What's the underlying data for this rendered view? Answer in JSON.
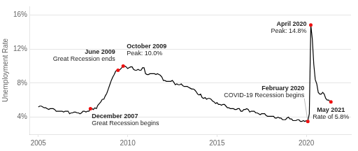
{
  "chart_data": {
    "type": "line",
    "ylabel": "Unemployment Rate",
    "xlim": [
      2004.5,
      2022.5
    ],
    "ylim": [
      2,
      17
    ],
    "xticks": [
      2005,
      2010,
      2015,
      2020
    ],
    "yticks": [
      {
        "value": 4,
        "label": "4%"
      },
      {
        "value": 8,
        "label": "8%"
      },
      {
        "value": 12,
        "label": "12%"
      },
      {
        "value": 16,
        "label": "16%"
      }
    ],
    "grid": true,
    "color": "#000000",
    "x": [
      2005.0,
      2005.083,
      2005.167,
      2005.25,
      2005.333,
      2005.417,
      2005.5,
      2005.583,
      2005.667,
      2005.75,
      2005.833,
      2005.917,
      2006.0,
      2006.083,
      2006.167,
      2006.25,
      2006.333,
      2006.417,
      2006.5,
      2006.583,
      2006.667,
      2006.75,
      2006.833,
      2006.917,
      2007.0,
      2007.083,
      2007.167,
      2007.25,
      2007.333,
      2007.417,
      2007.5,
      2007.583,
      2007.667,
      2007.75,
      2007.833,
      2007.917,
      2008.0,
      2008.083,
      2008.167,
      2008.25,
      2008.333,
      2008.417,
      2008.5,
      2008.583,
      2008.667,
      2008.75,
      2008.833,
      2008.917,
      2009.0,
      2009.083,
      2009.167,
      2009.25,
      2009.333,
      2009.417,
      2009.5,
      2009.583,
      2009.667,
      2009.75,
      2009.833,
      2009.917,
      2010.0,
      2010.083,
      2010.167,
      2010.25,
      2010.333,
      2010.417,
      2010.5,
      2010.583,
      2010.667,
      2010.75,
      2010.833,
      2010.917,
      2011.0,
      2011.083,
      2011.167,
      2011.25,
      2011.333,
      2011.417,
      2011.5,
      2011.583,
      2011.667,
      2011.75,
      2011.833,
      2011.917,
      2012.0,
      2012.083,
      2012.167,
      2012.25,
      2012.333,
      2012.417,
      2012.5,
      2012.583,
      2012.667,
      2012.75,
      2012.833,
      2012.917,
      2013.0,
      2013.083,
      2013.167,
      2013.25,
      2013.333,
      2013.417,
      2013.5,
      2013.583,
      2013.667,
      2013.75,
      2013.833,
      2013.917,
      2014.0,
      2014.083,
      2014.167,
      2014.25,
      2014.333,
      2014.417,
      2014.5,
      2014.583,
      2014.667,
      2014.75,
      2014.833,
      2014.917,
      2015.0,
      2015.083,
      2015.167,
      2015.25,
      2015.333,
      2015.417,
      2015.5,
      2015.583,
      2015.667,
      2015.75,
      2015.833,
      2015.917,
      2016.0,
      2016.083,
      2016.167,
      2016.25,
      2016.333,
      2016.417,
      2016.5,
      2016.583,
      2016.667,
      2016.75,
      2016.833,
      2016.917,
      2017.0,
      2017.083,
      2017.167,
      2017.25,
      2017.333,
      2017.417,
      2017.5,
      2017.583,
      2017.667,
      2017.75,
      2017.833,
      2017.917,
      2018.0,
      2018.083,
      2018.167,
      2018.25,
      2018.333,
      2018.417,
      2018.5,
      2018.583,
      2018.667,
      2018.75,
      2018.833,
      2018.917,
      2019.0,
      2019.083,
      2019.167,
      2019.25,
      2019.333,
      2019.417,
      2019.5,
      2019.583,
      2019.667,
      2019.75,
      2019.833,
      2019.917,
      2020.0,
      2020.083,
      2020.167,
      2020.25,
      2020.333,
      2020.417,
      2020.5,
      2020.583,
      2020.667,
      2020.75,
      2020.833,
      2020.917,
      2021.0,
      2021.083,
      2021.167,
      2021.25,
      2021.333,
      2021.417
    ],
    "values": [
      5.2,
      5.3,
      5.3,
      5.2,
      5.1,
      5.1,
      5.0,
      4.9,
      5.0,
      5.0,
      5.0,
      4.9,
      4.7,
      4.7,
      4.7,
      4.7,
      4.7,
      4.6,
      4.7,
      4.7,
      4.7,
      4.4,
      4.5,
      4.5,
      4.6,
      4.6,
      4.5,
      4.5,
      4.4,
      4.5,
      4.7,
      4.7,
      4.6,
      4.7,
      4.7,
      5.0,
      5.0,
      4.9,
      5.1,
      5.0,
      5.4,
      5.6,
      5.8,
      6.1,
      6.1,
      6.5,
      6.8,
      7.3,
      7.8,
      8.3,
      8.7,
      9.0,
      9.4,
      9.5,
      9.5,
      9.6,
      9.8,
      10.0,
      10.0,
      9.9,
      9.7,
      9.8,
      9.9,
      9.9,
      9.6,
      9.5,
      9.5,
      9.6,
      9.5,
      9.5,
      9.8,
      9.8,
      9.1,
      9.0,
      9.0,
      9.1,
      9.1,
      9.1,
      9.1,
      9.0,
      9.1,
      9.0,
      8.9,
      8.7,
      8.3,
      8.3,
      8.2,
      8.2,
      8.2,
      8.2,
      8.3,
      8.1,
      7.8,
      7.9,
      7.8,
      7.8,
      7.9,
      7.7,
      7.6,
      7.6,
      7.6,
      7.5,
      7.4,
      7.3,
      7.3,
      7.2,
      7.0,
      6.7,
      6.6,
      6.7,
      6.3,
      6.2,
      6.3,
      6.1,
      6.2,
      6.2,
      6.1,
      5.9,
      5.8,
      5.6,
      5.7,
      5.5,
      5.5,
      5.4,
      5.5,
      5.5,
      5.3,
      5.1,
      5.1,
      5.0,
      5.0,
      5.0,
      4.9,
      4.9,
      5.0,
      5.0,
      4.7,
      4.7,
      4.9,
      4.9,
      5.0,
      4.9,
      4.6,
      4.7,
      4.7,
      4.7,
      4.5,
      4.5,
      4.4,
      4.3,
      4.4,
      4.4,
      4.4,
      4.2,
      4.1,
      4.1,
      4.1,
      4.1,
      4.1,
      3.9,
      3.9,
      4.0,
      3.9,
      3.9,
      3.7,
      3.7,
      3.7,
      3.9,
      4.0,
      3.8,
      3.8,
      3.6,
      3.6,
      3.6,
      3.7,
      3.7,
      3.5,
      3.5,
      3.6,
      3.5,
      3.6,
      3.5,
      4.4,
      14.8,
      13.2,
      10.2,
      8.4,
      7.9,
      6.9,
      6.7,
      6.7,
      6.9,
      6.7,
      6.2,
      6.0,
      6.0,
      5.8,
      5.8
    ],
    "annotations": [
      {
        "label": [
          "June 2009",
          "Great Recession ends"
        ],
        "x": 2009.46,
        "y": 9.5,
        "color": "#ee1111"
      },
      {
        "label": [
          "October 2009",
          "Peak: 10.0%"
        ],
        "x": 2009.75,
        "y": 10.0,
        "color": "#ee1111"
      },
      {
        "label": [
          "December 2007",
          "Great Recession begins"
        ],
        "x": 2007.917,
        "y": 5.0,
        "color": "#ee1111"
      },
      {
        "label": [
          "April 2020",
          "Peak: 14.8%"
        ],
        "x": 2020.25,
        "y": 14.8,
        "color": "#ee1111"
      },
      {
        "label": [
          "February 2020",
          "COVID-19 Recession begins"
        ],
        "x": 2020.083,
        "y": 3.5,
        "color": "#ee1111"
      },
      {
        "label": [
          "May 2021",
          "Rate of 5.8%"
        ],
        "x": 2021.375,
        "y": 5.8,
        "color": "#ee1111"
      }
    ]
  }
}
